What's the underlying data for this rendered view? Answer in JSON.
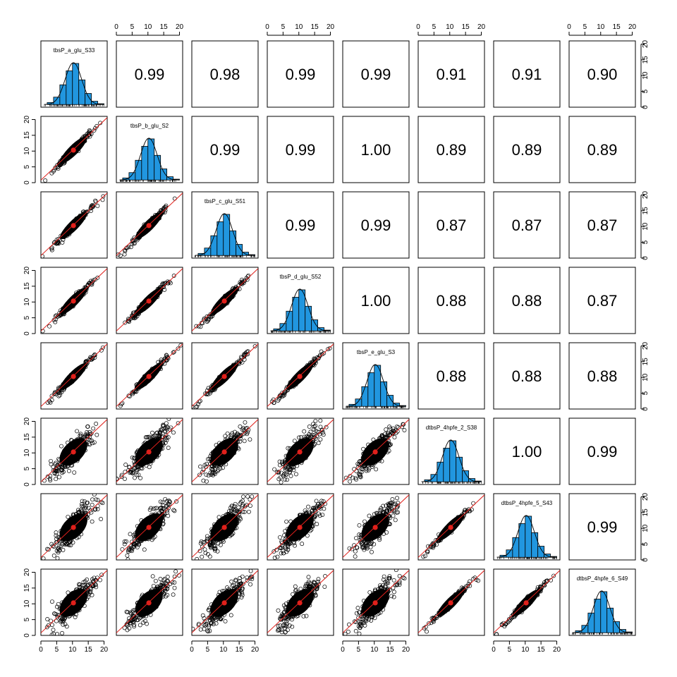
{
  "chart_data": {
    "type": "scatter-matrix",
    "variables": [
      "tbsP_a_glu_S33",
      "tbsP_b_glu_S2",
      "tbsP_c_glu_S51",
      "tbsP_d_glu_S52",
      "tbsP_e_glu_S3",
      "dtbsP_4hpfe_2_S38",
      "dtbsP_4hpfe_5_S43",
      "dtbsP_4hpfe_6_S49"
    ],
    "axis_range": [
      0,
      21
    ],
    "ticks": [
      "0",
      "5",
      "10",
      "15",
      "20"
    ],
    "correlations": [
      [
        "",
        "0.99",
        "0.98",
        "0.99",
        "0.99",
        "0.91",
        "0.91",
        "0.90"
      ],
      [
        "",
        "",
        "0.99",
        "0.99",
        "1.00",
        "0.89",
        "0.89",
        "0.89"
      ],
      [
        "",
        "",
        "",
        "0.99",
        "0.99",
        "0.87",
        "0.87",
        "0.87"
      ],
      [
        "",
        "",
        "",
        "",
        "1.00",
        "0.88",
        "0.88",
        "0.87"
      ],
      [
        "",
        "",
        "",
        "",
        "",
        "0.88",
        "0.88",
        "0.88"
      ],
      [
        "",
        "",
        "",
        "",
        "",
        "",
        "1.00",
        "0.99"
      ],
      [
        "",
        "",
        "",
        "",
        "",
        "",
        "",
        "0.99"
      ],
      [
        "",
        "",
        "",
        "",
        "",
        "",
        "",
        ""
      ]
    ],
    "correlation_values": [
      [
        null,
        0.99,
        0.98,
        0.99,
        0.99,
        0.91,
        0.91,
        0.9
      ],
      [
        null,
        null,
        0.99,
        0.99,
        1.0,
        0.89,
        0.89,
        0.89
      ],
      [
        null,
        null,
        null,
        0.99,
        0.99,
        0.87,
        0.87,
        0.87
      ],
      [
        null,
        null,
        null,
        null,
        1.0,
        0.88,
        0.88,
        0.87
      ],
      [
        null,
        null,
        null,
        null,
        null,
        0.88,
        0.88,
        0.88
      ],
      [
        null,
        null,
        null,
        null,
        null,
        null,
        1.0,
        0.99
      ],
      [
        null,
        null,
        null,
        null,
        null,
        null,
        null,
        0.99
      ],
      [
        null,
        null,
        null,
        null,
        null,
        null,
        null,
        null
      ]
    ],
    "histogram": {
      "bin_edges": [
        2,
        4,
        6,
        8,
        10,
        12,
        14,
        16,
        18,
        20
      ],
      "relative_heights": [
        0.05,
        0.18,
        0.48,
        0.82,
        1.0,
        0.6,
        0.27,
        0.08,
        0.02
      ]
    },
    "center_point": [
      10.3,
      10.3
    ],
    "histogram_color": "#2196DF",
    "point_color": "#000000",
    "fit_line_color": "#E0201B",
    "center_point_color": "#E0201B"
  }
}
